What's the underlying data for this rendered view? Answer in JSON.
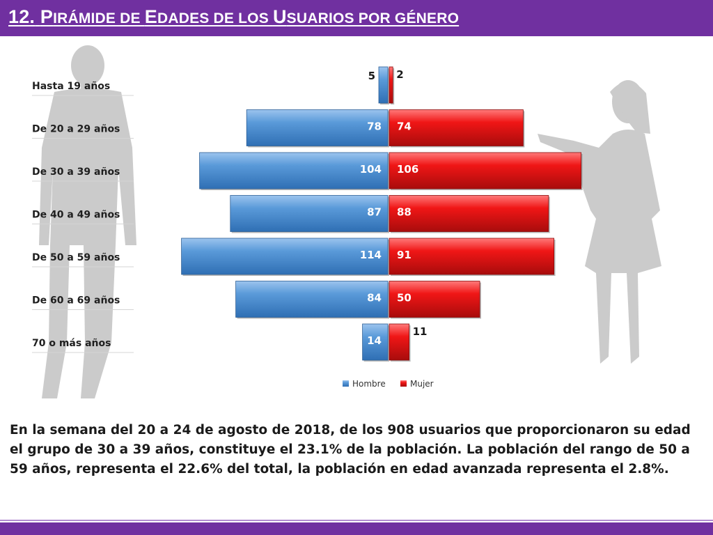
{
  "header": {
    "title_num": "12.",
    "title_segments": [
      {
        "cap": "P",
        "rest": "IRÁMIDE DE "
      },
      {
        "cap": "E",
        "rest": "DADES DE LOS "
      },
      {
        "cap": "U",
        "rest": "SUARIOS POR GÉNERO"
      }
    ]
  },
  "colors": {
    "header_bg": "#7030a0",
    "hombre": "#4f8fd0",
    "mujer": "#e31b1b"
  },
  "chart_data": {
    "type": "bar",
    "orientation": "horizontal-pyramid",
    "categories": [
      "Hasta 19 años",
      "De 20 a 29 años",
      "De 30 a 39 años",
      "De 40 a 49 años",
      "De 50 a 59 años",
      "De 60 a 69 años",
      "70 o más años"
    ],
    "series": [
      {
        "name": "Hombre",
        "values": [
          5,
          78,
          104,
          87,
          114,
          84,
          14
        ]
      },
      {
        "name": "Mujer",
        "values": [
          2,
          74,
          106,
          88,
          91,
          50,
          11
        ]
      }
    ],
    "legend": [
      "Hombre",
      "Mujer"
    ],
    "legend_position": "bottom-center"
  },
  "summary": "En la semana del 20 a 24 de agosto de 2018, de los 908 usuarios  que proporcionaron su edad el grupo de 30 a 39 años, constituye el 23.1% de la población. La población del rango de 50 a 59 años, representa el 22.6% del total, la población en edad avanzada representa el 2.8%."
}
